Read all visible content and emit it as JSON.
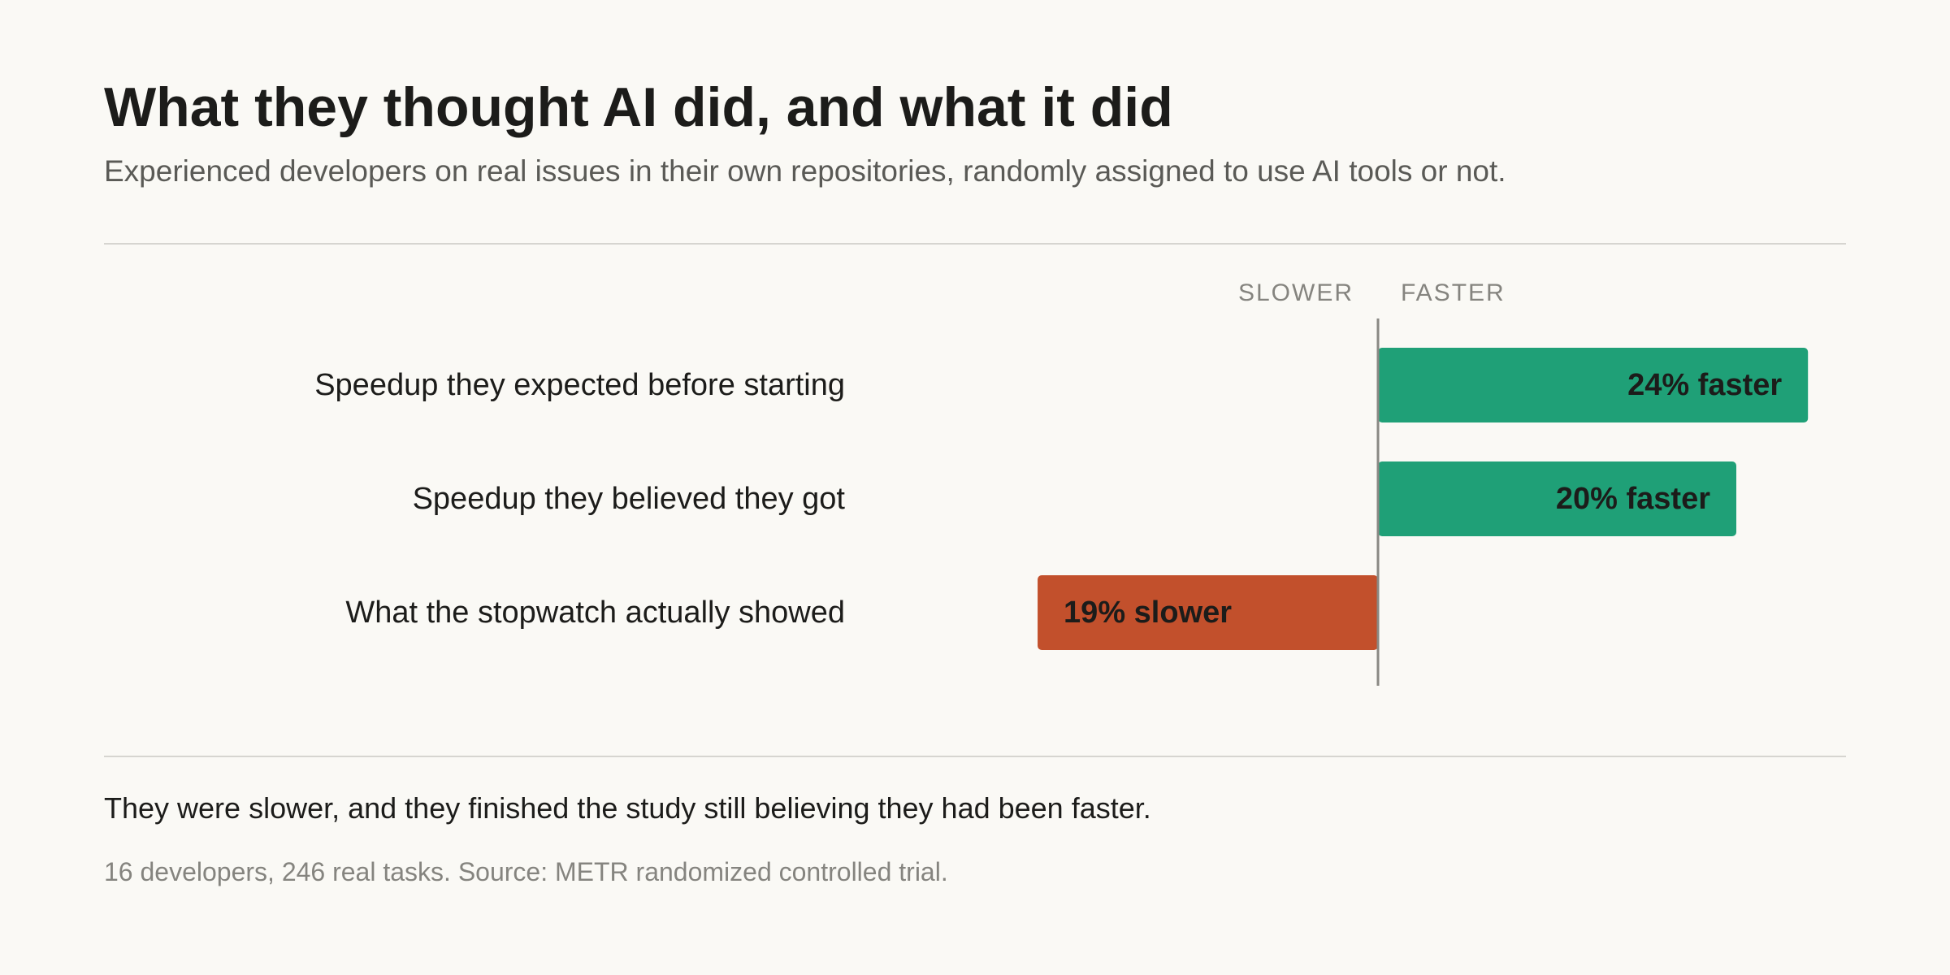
{
  "title": "What they thought AI did, and what it did",
  "subtitle": "Experienced developers on real issues in their own repositories, randomly assigned to use AI tools or not.",
  "axis": {
    "slower_label": "SLOWER",
    "faster_label": "FASTER"
  },
  "chart_data": {
    "type": "bar",
    "orientation": "horizontal",
    "categories": [
      "Speedup they expected before starting",
      "Speedup they believed they got",
      "What the stopwatch actually showed"
    ],
    "values": [
      24,
      20,
      -19
    ],
    "value_labels": [
      "24% faster",
      "20% faster",
      "19% slower"
    ],
    "colors": [
      "#1fa077",
      "#1fa077",
      "#c2502c"
    ],
    "xlim": [
      -24,
      26
    ],
    "grid": false
  },
  "takeaway": "They were slower, and they finished the study still believing they had been faster.",
  "source": "16 developers, 246 real tasks. Source: METR randomized controlled trial."
}
